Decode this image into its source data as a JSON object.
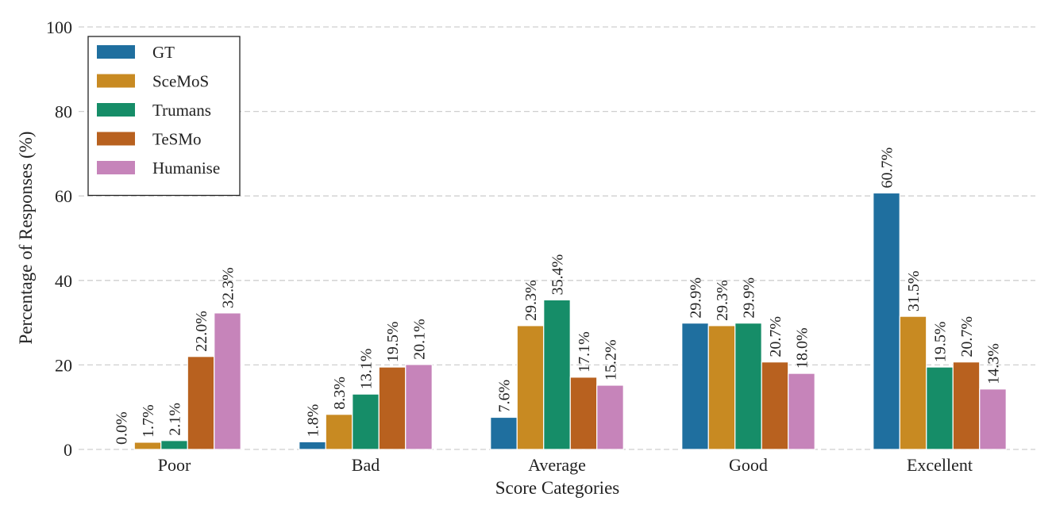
{
  "chart_data": {
    "type": "bar",
    "title": "",
    "xlabel": "Score Categories",
    "ylabel": "Percentage of Responses (%)",
    "ylim": [
      0,
      100
    ],
    "yticks": [
      0,
      20,
      40,
      60,
      80,
      100
    ],
    "grid": "horizontal dashed",
    "legend_position": "top-left",
    "categories": [
      "Poor",
      "Bad",
      "Average",
      "Good",
      "Excellent"
    ],
    "series": [
      {
        "name": "GT",
        "color": "#1f6f9f",
        "values": [
          0.0,
          1.8,
          7.6,
          29.9,
          60.7
        ],
        "labels": [
          "0.0%",
          "1.8%",
          "7.6%",
          "29.9%",
          "60.7%"
        ]
      },
      {
        "name": "SceMoS",
        "color": "#c88a22",
        "values": [
          1.7,
          8.3,
          29.3,
          29.3,
          31.5
        ],
        "labels": [
          "1.7%",
          "8.3%",
          "29.3%",
          "29.3%",
          "31.5%"
        ]
      },
      {
        "name": "Trumans",
        "color": "#168d68",
        "values": [
          2.1,
          13.1,
          35.4,
          29.9,
          19.5
        ],
        "labels": [
          "2.1%",
          "13.1%",
          "35.4%",
          "29.9%",
          "19.5%"
        ]
      },
      {
        "name": "TeSMo",
        "color": "#b8611f",
        "values": [
          22.0,
          19.5,
          17.1,
          20.7,
          20.7
        ],
        "labels": [
          "22.0%",
          "19.5%",
          "17.1%",
          "20.7%",
          "20.7%"
        ]
      },
      {
        "name": "Humanise",
        "color": "#c684ba",
        "values": [
          32.3,
          20.1,
          15.2,
          18.0,
          14.3
        ],
        "labels": [
          "32.3%",
          "20.1%",
          "15.2%",
          "18.0%",
          "14.3%"
        ]
      }
    ]
  }
}
